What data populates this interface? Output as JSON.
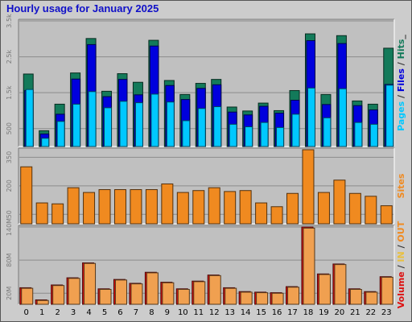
{
  "chart_data": {
    "type": "bar",
    "title": "Hourly usage for January 2025",
    "categories": [
      "0",
      "1",
      "2",
      "3",
      "4",
      "5",
      "6",
      "7",
      "8",
      "9",
      "10",
      "11",
      "12",
      "13",
      "14",
      "15",
      "16",
      "17",
      "18",
      "19",
      "20",
      "21",
      "22",
      "23"
    ],
    "grid": true,
    "panels": [
      {
        "id": "traffic",
        "ylim": [
          0,
          3500
        ],
        "ticks": [
          {
            "value": 500,
            "label": "500"
          },
          {
            "value": 1500,
            "label": "1.5k"
          },
          {
            "value": 2500,
            "label": "2.5k"
          },
          {
            "value": 3500,
            "label": "3.5k"
          }
        ],
        "legend": [
          {
            "text": "Pages",
            "color": "#00c8ff"
          },
          {
            "text": " / ",
            "color": "#303030"
          },
          {
            "text": "Files",
            "color": "#0000dd"
          },
          {
            "text": " / ",
            "color": "#303030"
          },
          {
            "text": "Hits",
            "color": "#137a5a"
          },
          {
            "text": "_",
            "color": "#303030"
          }
        ],
        "series": [
          {
            "name": "Hits",
            "color": "#137a5a",
            "values": [
              2020,
              440,
              1180,
              2050,
              3010,
              1540,
              2030,
              1790,
              2960,
              1840,
              1450,
              1760,
              1870,
              1100,
              990,
              1210,
              1000,
              1560,
              3140,
              1450,
              3090,
              1270,
              1180,
              2740
            ]
          },
          {
            "name": "Files",
            "color": "#0000dd",
            "values": [
              1560,
              350,
              900,
              1880,
              2840,
              1390,
              1870,
              1440,
              2800,
              1700,
              1310,
              1620,
              1720,
              960,
              880,
              1120,
              930,
              1290,
              2950,
              1170,
              2870,
              1140,
              1020,
              1730
            ]
          },
          {
            "name": "Pages",
            "color": "#00c8ff",
            "values": [
              1590,
              230,
              700,
              1180,
              1530,
              1080,
              1260,
              1220,
              1460,
              1240,
              720,
              1060,
              1110,
              620,
              550,
              670,
              530,
              900,
              1630,
              800,
              1610,
              670,
              620,
              1710
            ]
          }
        ]
      },
      {
        "id": "sites",
        "ylim": [
          0,
          390
        ],
        "ticks": [
          {
            "value": 50,
            "label": "50"
          },
          {
            "value": 200,
            "label": "200"
          },
          {
            "value": 350,
            "label": "350"
          }
        ],
        "legend": [
          {
            "text": "Sites",
            "color": "#f08a20"
          }
        ],
        "series": [
          {
            "name": "Sites",
            "color": "#f08a20",
            "values": [
              300,
              110,
              105,
              190,
              165,
              180,
              180,
              180,
              180,
              210,
              165,
              175,
              190,
              170,
              175,
              110,
              90,
              160,
              390,
              165,
              230,
              160,
              145,
              95
            ]
          }
        ]
      },
      {
        "id": "volume",
        "ylim": [
          0,
          140
        ],
        "ticks": [
          {
            "value": 20,
            "label": "20M"
          },
          {
            "value": 80,
            "label": "80M"
          },
          {
            "value": 140,
            "label": "140M"
          }
        ],
        "legend": [
          {
            "text": "Volume",
            "color": "#dd1010"
          },
          {
            "text": " / ",
            "color": "#303030"
          },
          {
            "text": "IN",
            "color": "#e8c040"
          },
          {
            "text": " / ",
            "color": "#303030"
          },
          {
            "text": "OUT",
            "color": "#f08a20"
          }
        ],
        "series": [
          {
            "name": "Volume",
            "color": "#dd1010",
            "values": [
              30,
              8,
              35,
              48,
              75,
              28,
              45,
              38,
              58,
              40,
              28,
              42,
              53,
              30,
              23,
              22,
              21,
              32,
              140,
              55,
              73,
              28,
              23,
              50
            ]
          },
          {
            "name": "OUT",
            "color": "#f0a050",
            "values": [
              29,
              7,
              34,
              47,
              74,
              27,
              44,
              37,
              57,
              39,
              27,
              41,
              52,
              29,
              22,
              21,
              20,
              31,
              138,
              54,
              72,
              27,
              22,
              49
            ]
          }
        ]
      }
    ]
  }
}
